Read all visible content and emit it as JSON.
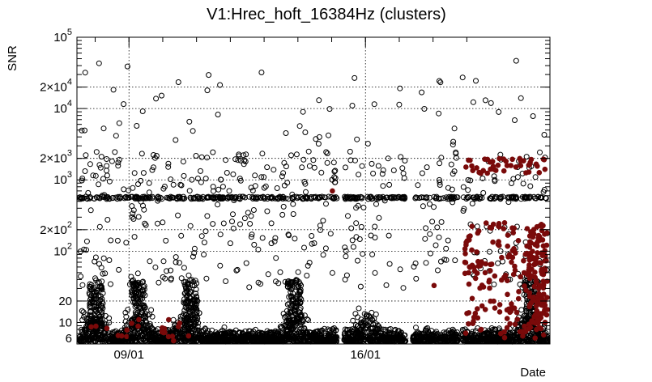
{
  "chart_data": {
    "type": "scatter",
    "title": "V1:Hrec_hoft_16384Hz (clusters)",
    "xlabel": "Date",
    "ylabel": "SNR",
    "yscale": "log",
    "ylim": [
      5,
      100000
    ],
    "x_ticks": [
      {
        "label": "09/01",
        "frac": 0.11
      },
      {
        "label": "16/01",
        "frac": 0.61
      }
    ],
    "y_ticks": [
      {
        "value": 100000,
        "base": "10",
        "exp": "5"
      },
      {
        "value": 20000,
        "base": "2×10",
        "exp": "4"
      },
      {
        "value": 10000,
        "base": "10",
        "exp": "4"
      },
      {
        "value": 2000,
        "base": "2×10",
        "exp": "3"
      },
      {
        "value": 1000,
        "base": "10",
        "exp": "3"
      },
      {
        "value": 200,
        "base": "2×10",
        "exp": "2"
      },
      {
        "value": 100,
        "base": "10",
        "exp": "2"
      },
      {
        "value": 20,
        "base": "20",
        "exp": ""
      },
      {
        "value": 10,
        "base": "10",
        "exp": ""
      },
      {
        "value": 6,
        "base": "6",
        "exp": ""
      }
    ],
    "grid": true,
    "series": [
      {
        "color": "#000000",
        "marker": "open-circle"
      },
      {
        "color": "#7a0a0a",
        "marker": "filled-circle"
      }
    ],
    "data_gaps": [
      [
        0.55,
        0.565
      ],
      [
        0.695,
        0.71
      ],
      [
        0.805,
        0.815
      ]
    ]
  }
}
